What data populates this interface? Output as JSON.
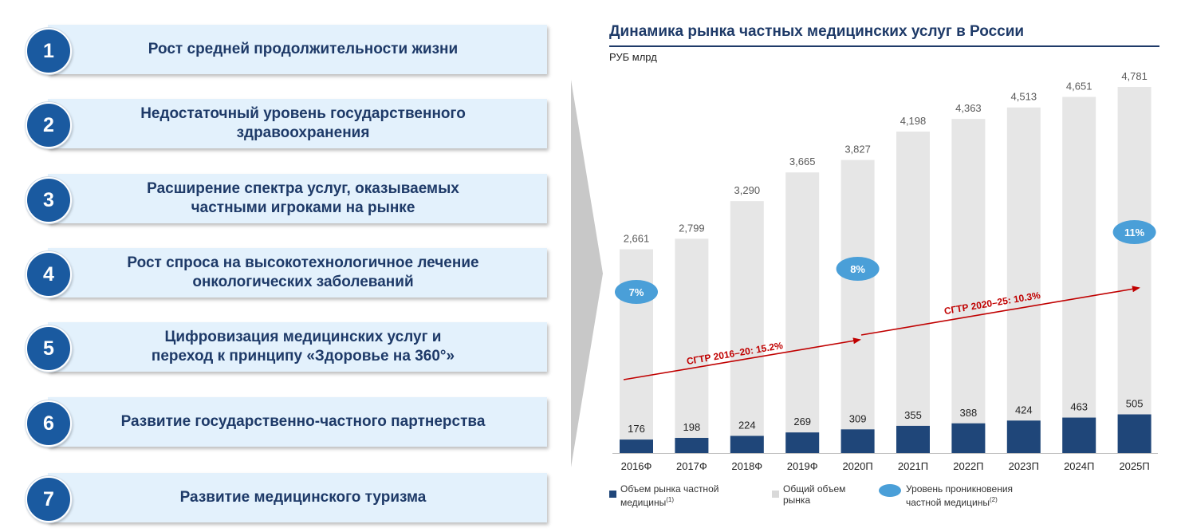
{
  "drivers": [
    {
      "number": "1",
      "text": "Рост средней продолжительности жизни"
    },
    {
      "number": "2",
      "text": "Недостаточный уровень государственного\nздравоохранения"
    },
    {
      "number": "3",
      "text": "Расширение спектра услуг, оказываемых\nчастными игроками на рынке"
    },
    {
      "number": "4",
      "text": "Рост спроса на высокотехнологичное лечение\nонкологических заболеваний"
    },
    {
      "number": "5",
      "text": "Цифровизация медицинских услуг и\nпереход к принципу «Здоровье на 360°»"
    },
    {
      "number": "6",
      "text": "Развитие государственно-частного партнерства"
    },
    {
      "number": "7",
      "text": "Развитие медицинского туризма"
    }
  ],
  "chart_data": {
    "type": "bar",
    "title": "Динамика рынка частных медицинских услуг в России",
    "unit": "РУБ млрд",
    "categories": [
      "2016Ф",
      "2017Ф",
      "2018Ф",
      "2019Ф",
      "2020П",
      "2021П",
      "2022П",
      "2023П",
      "2024П",
      "2025П"
    ],
    "series": [
      {
        "name": "Общий объем рынка",
        "values": [
          2661,
          2799,
          3290,
          3665,
          3827,
          4198,
          4363,
          4513,
          4651,
          4781
        ],
        "labels": [
          "2,661",
          "2,799",
          "3,290",
          "3,665",
          "3,827",
          "4,198",
          "4,363",
          "4,513",
          "4,651",
          "4,781"
        ],
        "color": "#e6e6e6"
      },
      {
        "name": "Объем рынка частной медицины",
        "values": [
          176,
          198,
          224,
          269,
          309,
          355,
          388,
          424,
          463,
          505
        ],
        "labels": [
          "176",
          "198",
          "224",
          "269",
          "309",
          "355",
          "388",
          "424",
          "463",
          "505"
        ],
        "color": "#1f4679"
      }
    ],
    "penetration": [
      {
        "category": "2016Ф",
        "label": "7%",
        "value": 7
      },
      {
        "category": "2020П",
        "label": "8%",
        "value": 8
      },
      {
        "category": "2025П",
        "label": "11%",
        "value": 11
      }
    ],
    "cagr": [
      {
        "label": "CГТР 2016–20: 15.2%",
        "from": "2016Ф",
        "to": "2020П"
      },
      {
        "label": "CГТР 2020–25: 10.3%",
        "from": "2020П",
        "to": "2025П"
      }
    ],
    "legend": [
      {
        "text": "Объем рынка частной\nмедицины",
        "sup": "(1)",
        "color": "#1f4679"
      },
      {
        "text": "Общий объем\nрынка",
        "sup": "",
        "color": "#d9d9d9"
      },
      {
        "text": "Уровень проникновения\nчастной медицины",
        "sup": "(2)",
        "color": "#4a9fd8"
      }
    ],
    "colors": {
      "accent": "#c00000",
      "bubble": "#4a9fd8",
      "title": "#1e3a68"
    }
  }
}
